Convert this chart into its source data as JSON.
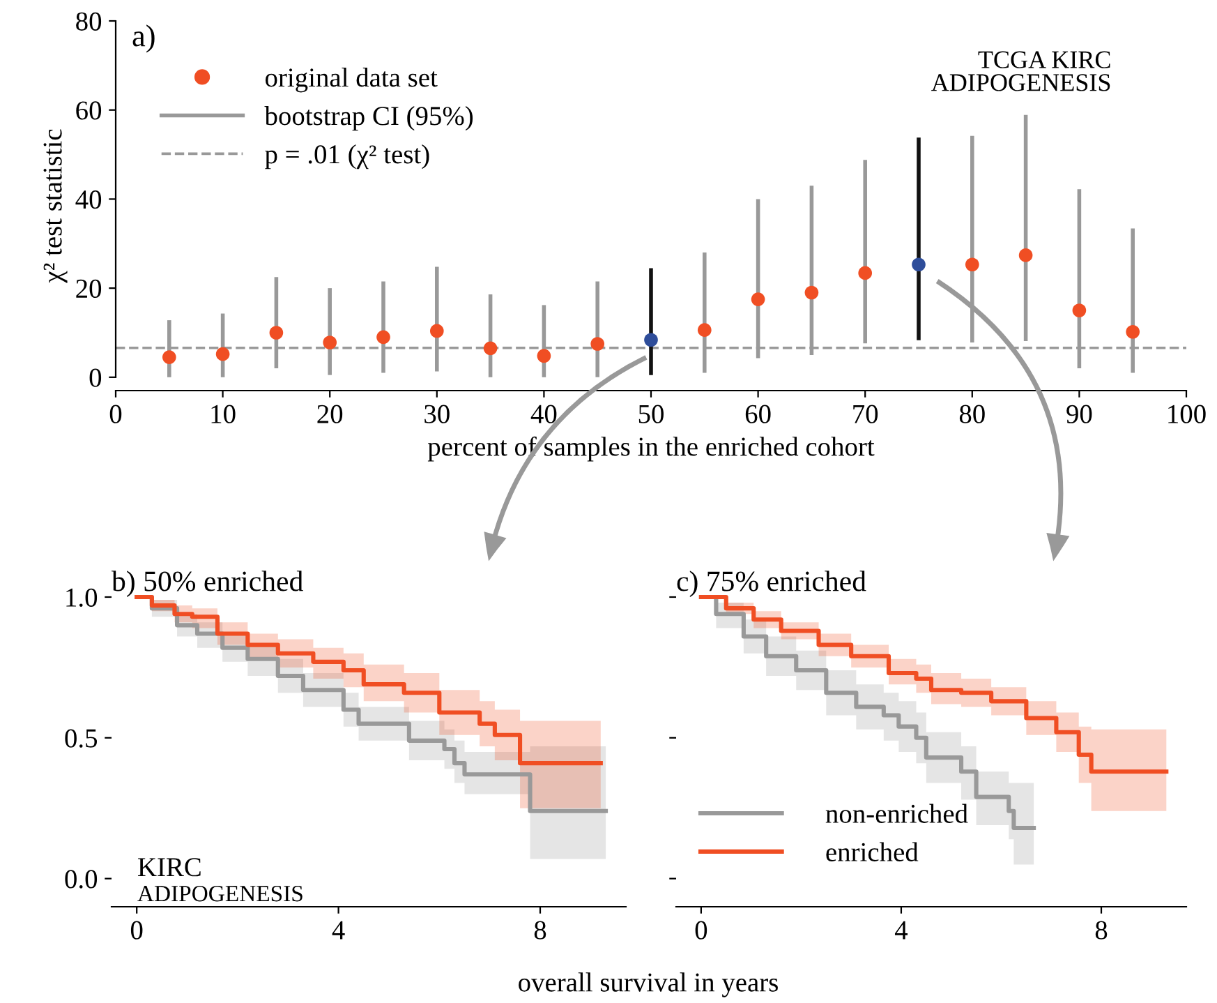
{
  "chart_data": [
    {
      "type": "scatter",
      "xlabel": "percent of samples in the enriched cohort",
      "ylabel": "χ² test statistic",
      "annotations": [
        "a)",
        "TCGA KIRC\nADIPOGENESIS",
        "bootstrap CI (95%)"
      ],
      "xlim": [
        0,
        100
      ],
      "ylim": [
        -3,
        80
      ],
      "xticks": [
        0,
        10,
        20,
        30,
        40,
        50,
        60,
        70,
        80,
        90,
        100
      ],
      "yticks": [
        0,
        20,
        40,
        60,
        80
      ],
      "series": [
        {
          "name": "original data set",
          "color": "#f04e23",
          "x": [
            5,
            10,
            15,
            20,
            25,
            30,
            35,
            40,
            45,
            55,
            60,
            65,
            70,
            80,
            85,
            90,
            95
          ],
          "values": [
            4.5,
            5.2,
            10,
            7.8,
            9,
            10.4,
            6.5,
            4.8,
            7.5,
            10.6,
            17.5,
            19,
            23.4,
            25.3,
            27.4,
            15,
            10.2
          ],
          "errors": [
            [
              0,
              12.8
            ],
            [
              0,
              14.3
            ],
            [
              2,
              22.5
            ],
            [
              0.5,
              20
            ],
            [
              1,
              21.5
            ],
            [
              1.3,
              24.8
            ],
            [
              0,
              18.6
            ],
            [
              0,
              16.2
            ],
            [
              0,
              21.5
            ],
            [
              1,
              28
            ],
            [
              4.3,
              40
            ],
            [
              5,
              43
            ],
            [
              7.6,
              48.8
            ],
            [
              7.8,
              54.2
            ],
            [
              8.1,
              58.9
            ],
            [
              2,
              42.2
            ],
            [
              1,
              33.4
            ]
          ]
        },
        {
          "color": "#2e4d9a",
          "x": [
            50,
            75
          ],
          "values": [
            8.4,
            25.3
          ],
          "errors": [
            [
              0.5,
              24.5
            ],
            [
              8.3,
              53.8
            ]
          ]
        }
      ],
      "ref_lines": [
        {
          "axis": "y",
          "value": 6.6,
          "label": "p = .01 (χ² test)",
          "color": "#999999",
          "line_style": "dashed"
        }
      ],
      "legend": "top left",
      "marker": "circle",
      "grid": false
    },
    {
      "type": "step",
      "title": "b) 50% enriched",
      "xlabel": "overall survival in years",
      "annotations": [
        "KIRC",
        "ADIPOGENESIS"
      ],
      "xlim": [
        -0.5,
        9.7
      ],
      "ylim": [
        -0.1,
        1.0
      ],
      "xticks": [
        0,
        4,
        8
      ],
      "yticks": [
        {
          "value": 0,
          "label": "0.0"
        },
        {
          "value": 0.5,
          "label": "0.5"
        },
        {
          "value": 1,
          "label": "1.0"
        }
      ],
      "series": [
        {
          "color": "#999999",
          "x": [
            0,
            0.3,
            0.8,
            1.2,
            1.7,
            2.2,
            2.8,
            3.3,
            4.1,
            4.4,
            5.4,
            6.1,
            6.3,
            6.5,
            7.8,
            9.3
          ],
          "values": [
            1.0,
            0.96,
            0.9,
            0.87,
            0.82,
            0.78,
            0.72,
            0.67,
            0.6,
            0.55,
            0.49,
            0.46,
            0.41,
            0.37,
            0.24,
            0.24
          ],
          "lower": [
            1.0,
            0.93,
            0.86,
            0.82,
            0.77,
            0.72,
            0.66,
            0.61,
            0.54,
            0.49,
            0.42,
            0.39,
            0.34,
            0.3,
            0.07,
            0.07
          ],
          "upper": [
            1.0,
            0.99,
            0.94,
            0.91,
            0.87,
            0.83,
            0.78,
            0.73,
            0.66,
            0.61,
            0.56,
            0.53,
            0.49,
            0.45,
            0.47,
            0.47
          ]
        },
        {
          "color": "#f04e23",
          "x": [
            0,
            0.3,
            0.75,
            1.1,
            1.6,
            2.2,
            2.8,
            3.5,
            4.1,
            4.5,
            5.3,
            6.0,
            6.8,
            7.1,
            7.6,
            9.2
          ],
          "values": [
            1.0,
            0.97,
            0.94,
            0.93,
            0.87,
            0.83,
            0.8,
            0.77,
            0.74,
            0.69,
            0.66,
            0.59,
            0.55,
            0.51,
            0.41,
            0.41
          ],
          "lower": [
            1.0,
            0.95,
            0.91,
            0.89,
            0.83,
            0.78,
            0.75,
            0.71,
            0.68,
            0.63,
            0.59,
            0.51,
            0.47,
            0.42,
            0.25,
            0.25
          ],
          "upper": [
            1.0,
            0.99,
            0.97,
            0.96,
            0.91,
            0.87,
            0.85,
            0.82,
            0.8,
            0.76,
            0.73,
            0.67,
            0.63,
            0.6,
            0.56,
            0.56
          ]
        }
      ],
      "grid": false
    },
    {
      "type": "step",
      "title": "c) 75% enriched",
      "xlim": [
        -0.5,
        9.7
      ],
      "ylim": [
        -0.1,
        1.0
      ],
      "xticks": [
        0,
        4,
        8
      ],
      "yticks": [
        {
          "value": 0,
          "label": null
        },
        {
          "value": 0.5,
          "label": null
        },
        {
          "value": 1,
          "label": null
        }
      ],
      "tick_labels": "x",
      "series": [
        {
          "name": "non-enriched",
          "color": "#999999",
          "x": [
            0,
            0.3,
            0.85,
            1.3,
            1.9,
            2.5,
            3.1,
            3.65,
            3.95,
            4.3,
            4.5,
            5.2,
            5.5,
            6.15,
            6.25,
            6.65
          ],
          "values": [
            1.0,
            0.94,
            0.86,
            0.79,
            0.74,
            0.66,
            0.61,
            0.58,
            0.54,
            0.5,
            0.43,
            0.38,
            0.29,
            0.24,
            0.18,
            0.18
          ],
          "lower": [
            1.0,
            0.89,
            0.8,
            0.72,
            0.67,
            0.58,
            0.53,
            0.49,
            0.45,
            0.41,
            0.34,
            0.28,
            0.19,
            0.14,
            0.05,
            0.05
          ],
          "upper": [
            1.0,
            0.98,
            0.92,
            0.86,
            0.81,
            0.74,
            0.69,
            0.66,
            0.63,
            0.59,
            0.52,
            0.47,
            0.38,
            0.34,
            0.34,
            0.34
          ]
        },
        {
          "name": "enriched",
          "color": "#f04e23",
          "x": [
            0,
            0.5,
            1.05,
            1.6,
            2.35,
            3.0,
            3.75,
            4.3,
            4.6,
            5.2,
            5.8,
            6.5,
            7.1,
            7.55,
            7.8,
            9.3
          ],
          "values": [
            1.0,
            0.96,
            0.92,
            0.88,
            0.83,
            0.79,
            0.73,
            0.71,
            0.67,
            0.66,
            0.63,
            0.57,
            0.52,
            0.44,
            0.38,
            0.38
          ],
          "lower": [
            1.0,
            0.94,
            0.89,
            0.85,
            0.79,
            0.75,
            0.69,
            0.66,
            0.62,
            0.61,
            0.58,
            0.51,
            0.45,
            0.34,
            0.24,
            0.24
          ],
          "upper": [
            1.0,
            0.98,
            0.95,
            0.91,
            0.87,
            0.83,
            0.78,
            0.76,
            0.73,
            0.71,
            0.68,
            0.63,
            0.59,
            0.54,
            0.53,
            0.53
          ]
        }
      ],
      "legend": "bottom left",
      "grid": false
    }
  ]
}
